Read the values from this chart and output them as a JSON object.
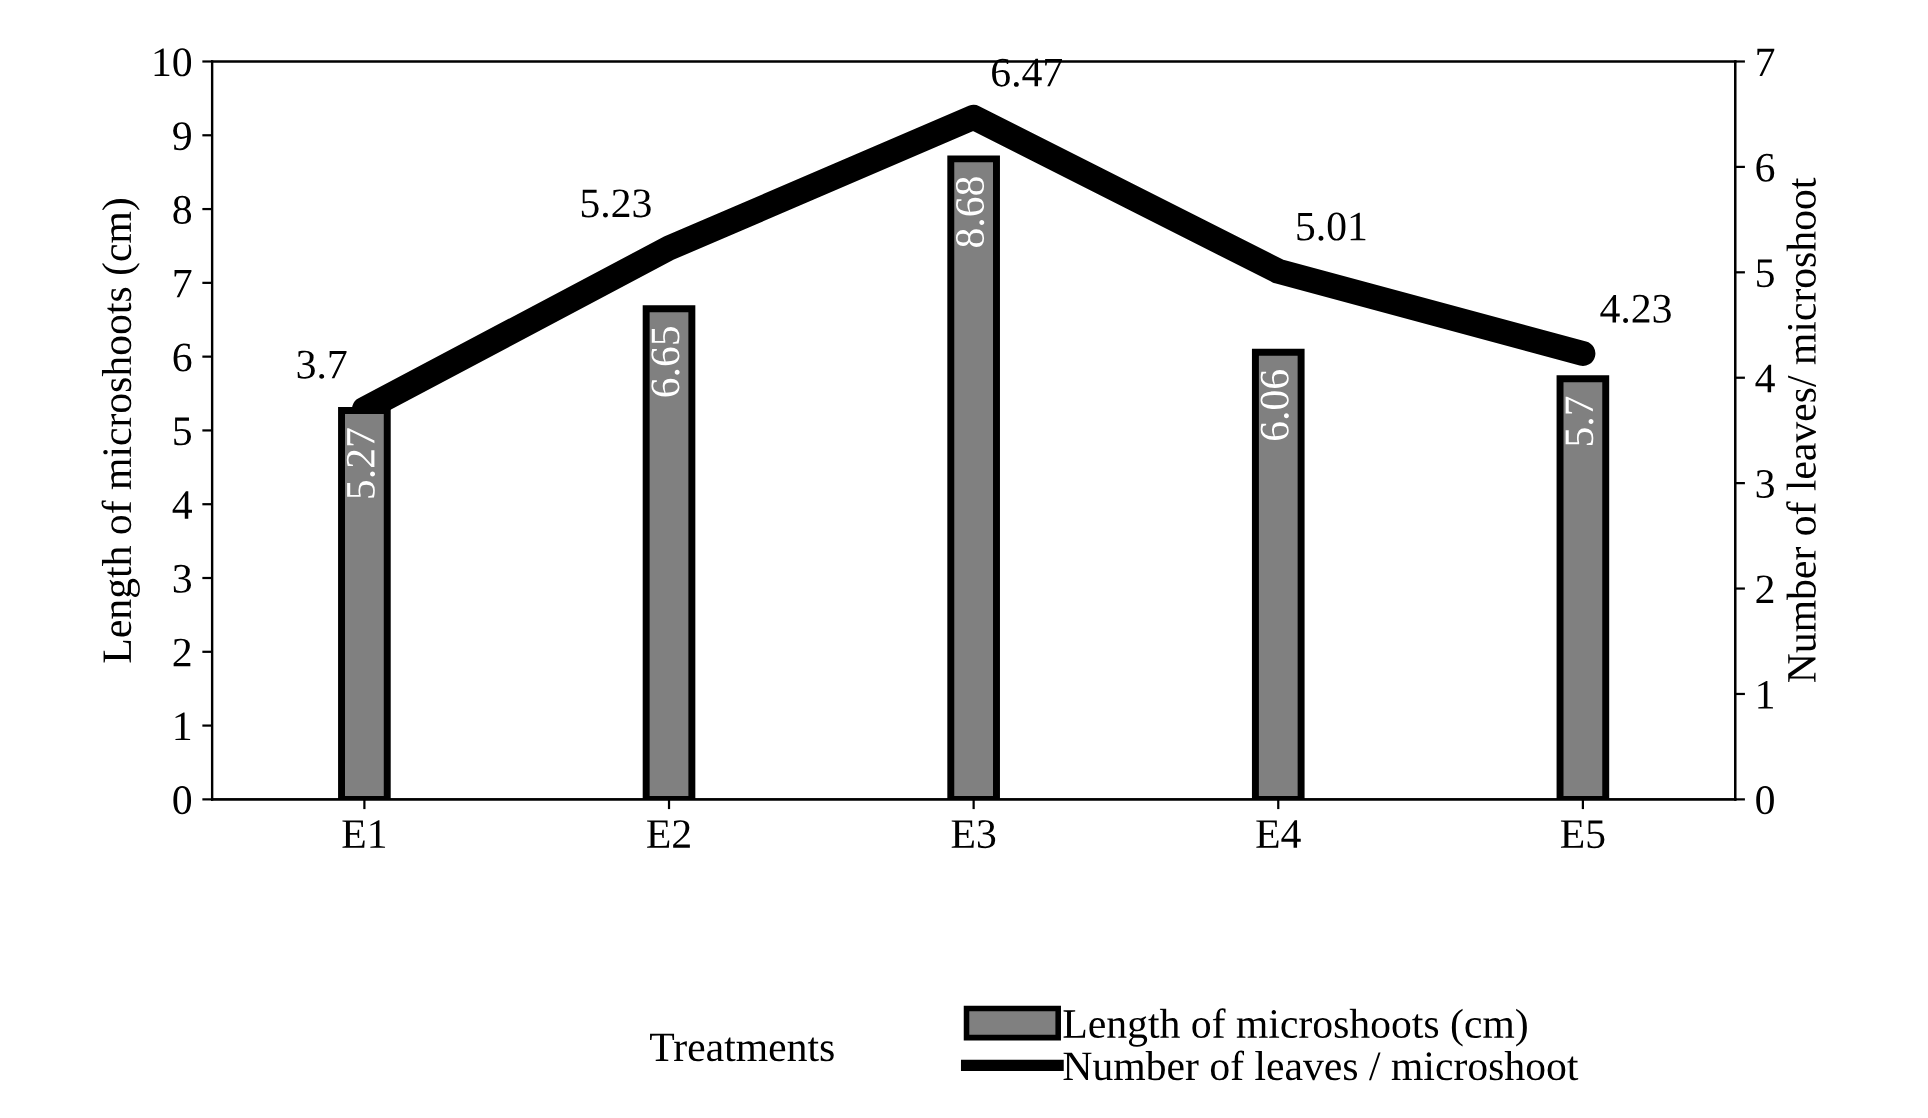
{
  "chart_data": {
    "type": "bar",
    "xlabel": "Treatments",
    "ylabel": "Length of microshoots (cm)",
    "y2label": "Number of leaves/ microshoot",
    "categories": [
      "E1",
      "E2",
      "E3",
      "E4",
      "E5"
    ],
    "series": [
      {
        "name": "Length of microshoots (cm)",
        "type": "bar",
        "color": "#808080",
        "values": [
          5.27,
          6.65,
          8.68,
          6.06,
          5.7
        ]
      },
      {
        "name": "Number of leaves / microshoot",
        "type": "line",
        "axis": "y2",
        "color": "#000000",
        "values": [
          3.7,
          5.23,
          6.47,
          5.01,
          4.23
        ]
      }
    ],
    "ylim": [
      0,
      10
    ],
    "yticks": [
      0,
      1,
      2,
      3,
      4,
      5,
      6,
      7,
      8,
      9,
      10
    ],
    "y2lim": [
      0,
      7
    ],
    "y2ticks": [
      0,
      1,
      2,
      3,
      4,
      5,
      6,
      7
    ],
    "data_labels": true,
    "grid": false,
    "legend": "bottom",
    "marker": "none",
    "line_style": "solid"
  }
}
